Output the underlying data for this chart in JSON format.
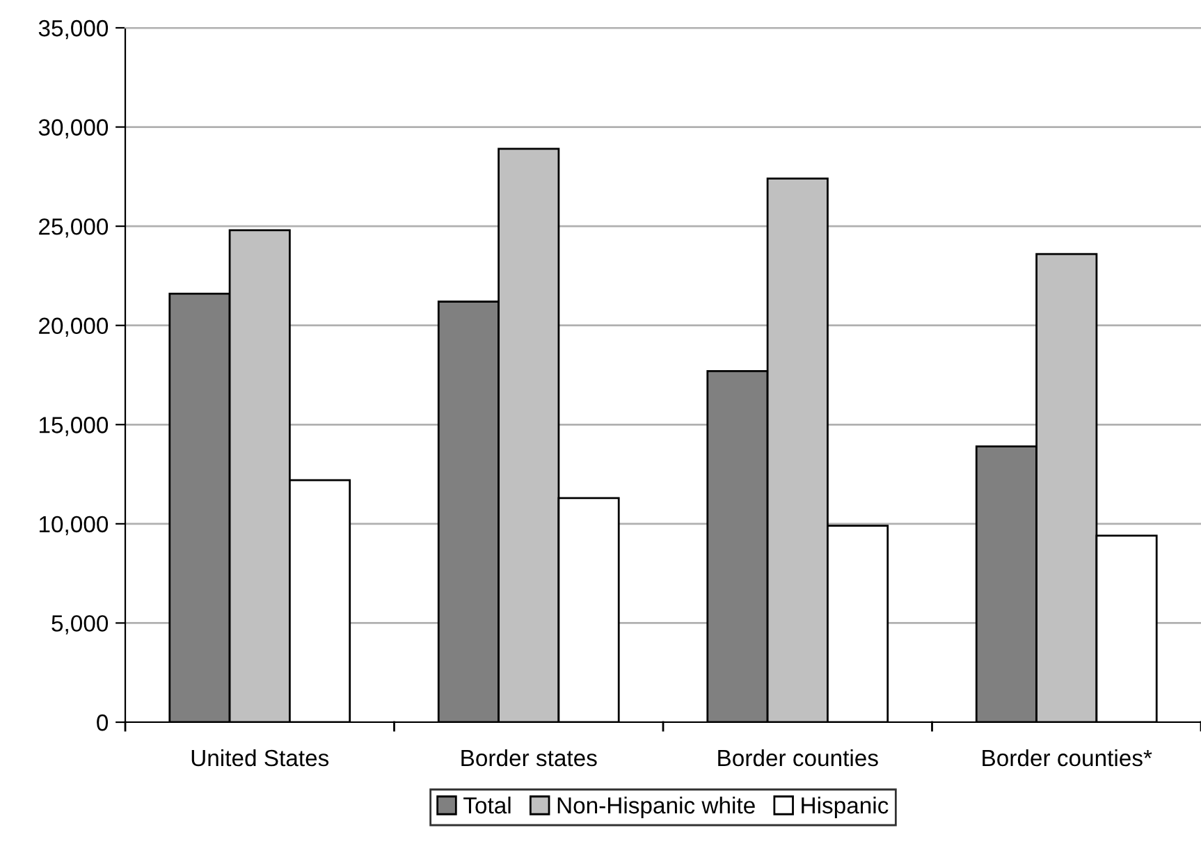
{
  "chart_data": {
    "type": "bar",
    "categories": [
      "United States",
      "Border states",
      "Border counties",
      "Border counties*"
    ],
    "series": [
      {
        "name": "Total",
        "color": "#808080",
        "values": [
          21600,
          21200,
          17700,
          13900
        ]
      },
      {
        "name": "Non-Hispanic white",
        "color": "#c0c0c0",
        "values": [
          24800,
          28900,
          27400,
          23600
        ]
      },
      {
        "name": "Hispanic",
        "color": "#ffffff",
        "values": [
          12200,
          11300,
          9900,
          9400
        ]
      }
    ],
    "ylim": [
      0,
      35000
    ],
    "yticks": [
      {
        "value": 0,
        "label": "0"
      },
      {
        "value": 5000,
        "label": "5,000"
      },
      {
        "value": 10000,
        "label": "10,000"
      },
      {
        "value": 15000,
        "label": "15,000"
      },
      {
        "value": 20000,
        "label": "20,000"
      },
      {
        "value": 25000,
        "label": "25,000"
      },
      {
        "value": 30000,
        "label": "30,000"
      },
      {
        "value": 35000,
        "label": "35,000"
      }
    ],
    "grid": "y",
    "legend": "bottom"
  }
}
